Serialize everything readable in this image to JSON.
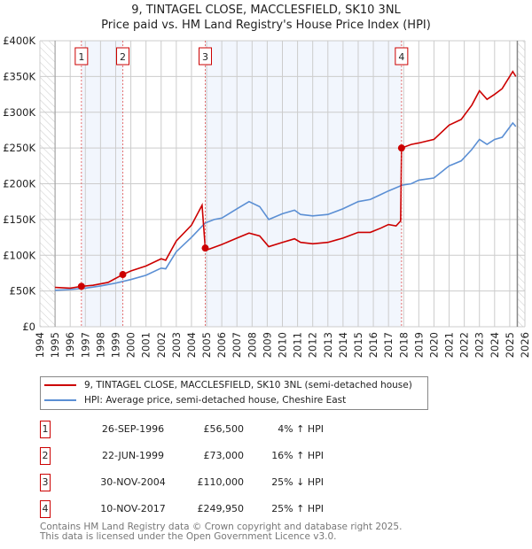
{
  "title": "9, TINTAGEL CLOSE, MACCLESFIELD, SK10 3NL",
  "subtitle": "Price paid vs. HM Land Registry's House Price Index (HPI)",
  "chart_data": {
    "type": "line",
    "xlim": [
      1994,
      2026
    ],
    "ylim": [
      0,
      400000
    ],
    "y_ticks": [
      {
        "v": 0,
        "label": "£0"
      },
      {
        "v": 50000,
        "label": "£50K"
      },
      {
        "v": 100000,
        "label": "£100K"
      },
      {
        "v": 150000,
        "label": "£150K"
      },
      {
        "v": 200000,
        "label": "£200K"
      },
      {
        "v": 250000,
        "label": "£250K"
      },
      {
        "v": 300000,
        "label": "£300K"
      },
      {
        "v": 350000,
        "label": "£350K"
      },
      {
        "v": 400000,
        "label": "£400K"
      }
    ],
    "x_ticks": [
      "1994",
      "1995",
      "1996",
      "1997",
      "1998",
      "1999",
      "2000",
      "2001",
      "2002",
      "2003",
      "2004",
      "2005",
      "2006",
      "2007",
      "2008",
      "2009",
      "2010",
      "2011",
      "2012",
      "2013",
      "2014",
      "2015",
      "2016",
      "2017",
      "2018",
      "2019",
      "2020",
      "2021",
      "2022",
      "2023",
      "2024",
      "2025",
      "2026"
    ],
    "data_start": 1995,
    "data_end": 2025.5,
    "series": [
      {
        "name": "9, TINTAGEL CLOSE, MACCLESFIELD, SK10 3NL (semi-detached house)",
        "color": "#cc0000",
        "points": [
          [
            1995,
            55000
          ],
          [
            1996,
            54000
          ],
          [
            1996.74,
            56500
          ],
          [
            1997.5,
            58000
          ],
          [
            1998.5,
            62000
          ],
          [
            1999.47,
            73000
          ],
          [
            2000,
            78000
          ],
          [
            2001,
            85000
          ],
          [
            2002,
            95000
          ],
          [
            2002.3,
            93000
          ],
          [
            2003,
            120000
          ],
          [
            2004,
            142000
          ],
          [
            2004.7,
            170000
          ],
          [
            2004.91,
            110000
          ],
          [
            2005.1,
            108000
          ],
          [
            2006,
            115000
          ],
          [
            2007,
            124000
          ],
          [
            2007.8,
            131000
          ],
          [
            2008.5,
            127000
          ],
          [
            2009.1,
            112000
          ],
          [
            2010,
            118000
          ],
          [
            2010.8,
            123000
          ],
          [
            2011.2,
            118000
          ],
          [
            2012,
            116000
          ],
          [
            2013,
            118000
          ],
          [
            2014,
            124000
          ],
          [
            2015,
            132000
          ],
          [
            2015.8,
            132000
          ],
          [
            2016.5,
            138000
          ],
          [
            2017,
            143000
          ],
          [
            2017.5,
            141000
          ],
          [
            2017.8,
            148000
          ],
          [
            2017.86,
            249950
          ],
          [
            2018.5,
            255000
          ],
          [
            2019,
            257000
          ],
          [
            2020,
            262000
          ],
          [
            2021,
            282000
          ],
          [
            2021.8,
            290000
          ],
          [
            2022.5,
            310000
          ],
          [
            2023,
            330000
          ],
          [
            2023.5,
            318000
          ],
          [
            2024,
            325000
          ],
          [
            2024.5,
            333000
          ],
          [
            2025.2,
            357000
          ],
          [
            2025.4,
            350000
          ]
        ]
      },
      {
        "name": "HPI: Average price, semi-detached house, Cheshire East",
        "color": "#5b8fd4",
        "points": [
          [
            1995,
            51000
          ],
          [
            1996,
            52000
          ],
          [
            1997,
            54000
          ],
          [
            1998,
            57000
          ],
          [
            1999,
            61000
          ],
          [
            2000,
            66000
          ],
          [
            2001,
            72000
          ],
          [
            2002,
            82000
          ],
          [
            2002.3,
            81000
          ],
          [
            2003,
            105000
          ],
          [
            2004,
            125000
          ],
          [
            2004.9,
            145000
          ],
          [
            2005.5,
            150000
          ],
          [
            2006,
            152000
          ],
          [
            2007,
            165000
          ],
          [
            2007.8,
            175000
          ],
          [
            2008.5,
            168000
          ],
          [
            2009.1,
            150000
          ],
          [
            2010,
            158000
          ],
          [
            2010.8,
            163000
          ],
          [
            2011.2,
            157000
          ],
          [
            2012,
            155000
          ],
          [
            2013,
            157000
          ],
          [
            2014,
            165000
          ],
          [
            2015,
            175000
          ],
          [
            2015.8,
            178000
          ],
          [
            2016.5,
            185000
          ],
          [
            2017,
            190000
          ],
          [
            2017.9,
            198000
          ],
          [
            2018.5,
            200000
          ],
          [
            2019,
            205000
          ],
          [
            2020,
            208000
          ],
          [
            2021,
            225000
          ],
          [
            2021.8,
            232000
          ],
          [
            2022.5,
            248000
          ],
          [
            2023,
            262000
          ],
          [
            2023.5,
            255000
          ],
          [
            2024,
            262000
          ],
          [
            2024.5,
            265000
          ],
          [
            2025.2,
            285000
          ],
          [
            2025.4,
            280000
          ]
        ]
      }
    ],
    "sales": [
      {
        "n": "1",
        "x": 1996.74,
        "price": 56500
      },
      {
        "n": "2",
        "x": 1999.47,
        "price": 73000
      },
      {
        "n": "3",
        "x": 2004.91,
        "price": 110000
      },
      {
        "n": "4",
        "x": 2017.86,
        "price": 249950
      }
    ]
  },
  "legend": [
    "9, TINTAGEL CLOSE, MACCLESFIELD, SK10 3NL (semi-detached house)",
    "HPI: Average price, semi-detached house, Cheshire East"
  ],
  "transactions": [
    {
      "n": "1",
      "date": "26-SEP-1996",
      "price": "£56,500",
      "hpi": "4% ↑ HPI"
    },
    {
      "n": "2",
      "date": "22-JUN-1999",
      "price": "£73,000",
      "hpi": "16% ↑ HPI"
    },
    {
      "n": "3",
      "date": "30-NOV-2004",
      "price": "£110,000",
      "hpi": "25% ↓ HPI"
    },
    {
      "n": "4",
      "date": "10-NOV-2017",
      "price": "£249,950",
      "hpi": "25% ↑ HPI"
    }
  ],
  "footer": [
    "Contains HM Land Registry data © Crown copyright and database right 2025.",
    "This data is licensed under the Open Government Licence v3.0."
  ]
}
